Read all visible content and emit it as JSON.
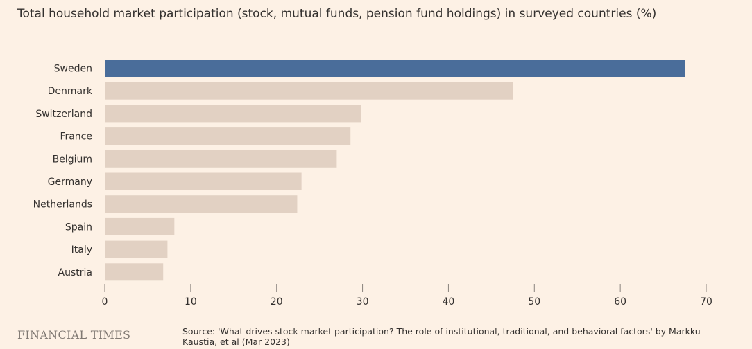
{
  "chart_data": {
    "type": "bar",
    "orientation": "horizontal",
    "title": "Total household market participation (stock, mutual funds, pension fund holdings) in surveyed countries (%)",
    "categories": [
      "Sweden",
      "Denmark",
      "Switzerland",
      "France",
      "Belgium",
      "Germany",
      "Netherlands",
      "Spain",
      "Italy",
      "Austria"
    ],
    "values": [
      67.5,
      47.5,
      29.8,
      28.6,
      27.0,
      22.9,
      22.4,
      8.1,
      7.3,
      6.8
    ],
    "highlight": "Sweden",
    "colors": {
      "highlight": "#4a6d9a",
      "default": "#e2d1c3",
      "axis": "#8a837d",
      "text": "#33302e"
    },
    "xlim": [
      0,
      70
    ],
    "xticks": [
      0,
      10,
      20,
      30,
      40,
      50,
      60,
      70
    ],
    "grid": false,
    "legend": "none"
  },
  "footer": {
    "brand": "FINANCIAL TIMES",
    "source": "Source: 'What drives stock market participation? The role of institutional, traditional, and behavioral factors' by Markku Kaustia, et al (Mar 2023)"
  }
}
